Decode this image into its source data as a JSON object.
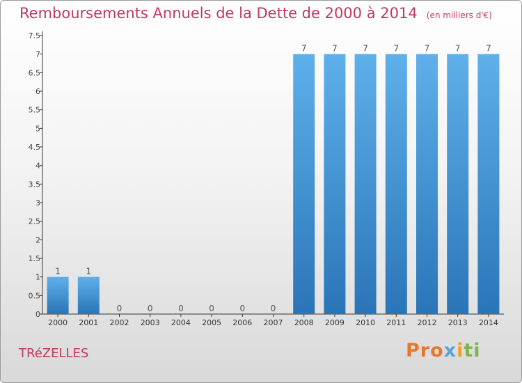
{
  "header": {
    "title": "Remboursements Annuels de la Dette de 2000 à 2014",
    "unit": "(en milliers d'€)"
  },
  "footer": {
    "commune": "TRéZELLES",
    "logo": {
      "p1": "Pro",
      "p2": "x",
      "p3": "i",
      "p4": "ti"
    }
  },
  "colors": {
    "title": "#c03a5c",
    "bar_light": "#5fb0ea",
    "bar_dark": "#2a75b8",
    "axis": "#333333"
  },
  "chart_data": {
    "type": "bar",
    "categories": [
      "2000",
      "2001",
      "2002",
      "2003",
      "2004",
      "2005",
      "2006",
      "2007",
      "2008",
      "2009",
      "2010",
      "2011",
      "2012",
      "2013",
      "2014"
    ],
    "values": [
      1,
      1,
      0,
      0,
      0,
      0,
      0,
      0,
      7,
      7,
      7,
      7,
      7,
      7,
      7
    ],
    "data_labels": [
      "1",
      "1",
      "0",
      "0",
      "0",
      "0",
      "0",
      "0",
      "7",
      "7",
      "7",
      "7",
      "7",
      "7",
      "7"
    ],
    "yticks": [
      0,
      0.5,
      1,
      1.5,
      2,
      2.5,
      3,
      3.5,
      4,
      4.5,
      5,
      5.5,
      6,
      6.5,
      7,
      7.5
    ],
    "ytick_labels": [
      "0",
      "0.5",
      "1",
      "1.5",
      "2",
      "2.5",
      "3",
      "3.5",
      "4",
      "4.5",
      "5",
      "5.5",
      "6",
      "6.5",
      "7",
      "7.5"
    ],
    "ylim": [
      0,
      7.5
    ],
    "title": "Remboursements Annuels de la Dette de 2000 à 2014",
    "xlabel": "",
    "ylabel": "",
    "grid": false,
    "legend": "none"
  }
}
